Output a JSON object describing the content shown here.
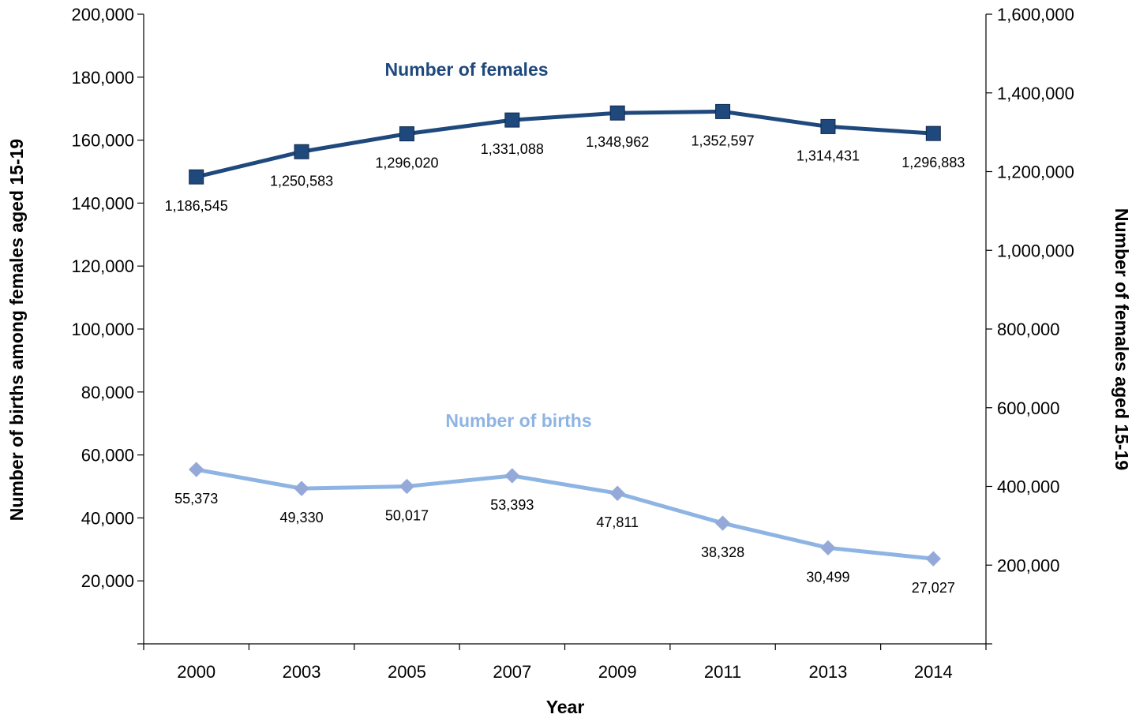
{
  "chart_data": {
    "type": "line",
    "xlabel": "Year",
    "ylabel_left": "Number of births among females aged 15-19",
    "ylabel_right": "Number of females aged 15-19",
    "categories": [
      "2000",
      "2003",
      "2005",
      "2007",
      "2009",
      "2011",
      "2013",
      "2014"
    ],
    "y_left": {
      "range": [
        0,
        200000
      ],
      "ticks": [
        "20,000",
        "40,000",
        "60,000",
        "80,000",
        "100,000",
        "120,000",
        "140,000",
        "160,000",
        "180,000",
        "200,000"
      ]
    },
    "y_right": {
      "range": [
        0,
        1600000
      ],
      "ticks": [
        "200,000",
        "400,000",
        "600,000",
        "800,000",
        "1,000,000",
        "1,200,000",
        "1,400,000",
        "1,600,000"
      ]
    },
    "series": [
      {
        "name": "Number of females",
        "axis": "right",
        "color": "#1f497d",
        "marker": "square",
        "values": [
          1186545,
          1250583,
          1296020,
          1331088,
          1348962,
          1352597,
          1314431,
          1296883
        ],
        "labels": [
          "1,186,545",
          "1,250,583",
          "1,296,020",
          "1,331,088",
          "1,348,962",
          "1,352,597",
          "1,314,431",
          "1,296,883"
        ]
      },
      {
        "name": "Number of births",
        "axis": "left",
        "color": "#8eb4e3",
        "marker": "diamond",
        "marker_color": "#95a9d8",
        "values": [
          55373,
          49330,
          50017,
          53393,
          47811,
          38328,
          30499,
          27027
        ],
        "labels": [
          "55,373",
          "49,330",
          "50,017",
          "53,393",
          "47,811",
          "38,328",
          "30,499",
          "27,027"
        ]
      }
    ],
    "grid": false,
    "legend": "none"
  }
}
